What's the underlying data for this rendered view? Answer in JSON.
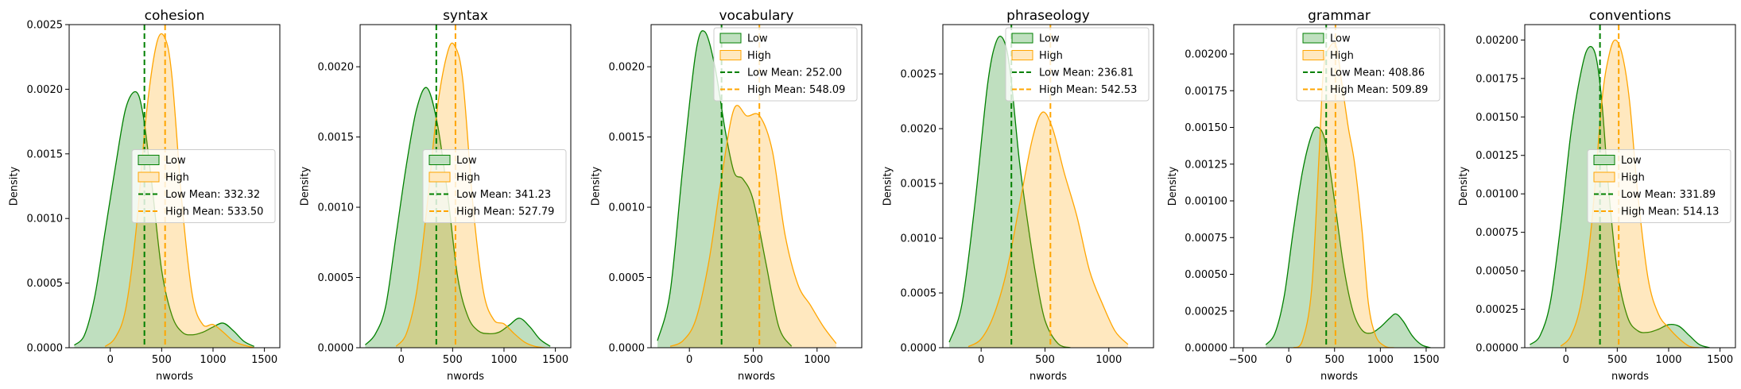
{
  "chart_data": [
    {
      "type": "area",
      "title": "cohesion",
      "xlabel": "nwords",
      "ylabel": "Density",
      "xlim": [
        -400,
        1650
      ],
      "ylim": [
        0,
        0.0025
      ],
      "xticks": [
        0,
        500,
        1000,
        1500
      ],
      "xticklabels": [
        "0",
        "500",
        "1000",
        "1500"
      ],
      "yticks": [
        0,
        0.0005,
        0.001,
        0.0015,
        0.002,
        0.0025
      ],
      "yticklabels": [
        "0.0000",
        "0.0005",
        "0.0010",
        "0.0015",
        "0.0020",
        "0.0025"
      ],
      "legend_placement": "center-right",
      "series": [
        {
          "name": "Low",
          "color": "#008000",
          "x": [
            -350,
            -250,
            -150,
            -50,
            50,
            150,
            250,
            320,
            400,
            500,
            600,
            700,
            800,
            900,
            1000,
            1100,
            1200,
            1300,
            1400
          ],
          "values": [
            2e-05,
            0.0001,
            0.0004,
            0.0009,
            0.0014,
            0.00185,
            0.00198,
            0.0018,
            0.0013,
            0.0006,
            0.00025,
            0.00012,
            0.0001,
            0.00012,
            0.00016,
            0.00019,
            0.00013,
            5e-05,
            1e-05
          ]
        },
        {
          "name": "High",
          "color": "#ffa500",
          "x": [
            -50,
            50,
            150,
            250,
            350,
            450,
            530,
            600,
            700,
            800,
            900,
            1000,
            1100,
            1200,
            1300,
            1400
          ],
          "values": [
            1e-05,
            8e-05,
            0.0003,
            0.0009,
            0.0018,
            0.00235,
            0.0024,
            0.0021,
            0.0011,
            0.0004,
            0.00018,
            0.00018,
            0.00012,
            5e-05,
            2e-05,
            0.0
          ]
        }
      ],
      "means": [
        {
          "name": "Low Mean: 332.32",
          "value": 332.32,
          "color": "#008000"
        },
        {
          "name": "High Mean: 533.50",
          "value": 533.5,
          "color": "#ffa500"
        }
      ]
    },
    {
      "type": "area",
      "title": "syntax",
      "xlabel": "nwords",
      "ylabel": "Density",
      "xlim": [
        -400,
        1650
      ],
      "ylim": [
        0,
        0.0023
      ],
      "xticks": [
        0,
        500,
        1000,
        1500
      ],
      "xticklabels": [
        "0",
        "500",
        "1000",
        "1500"
      ],
      "yticks": [
        0,
        0.0005,
        0.001,
        0.0015,
        0.002
      ],
      "yticklabels": [
        "0.0000",
        "0.0005",
        "0.0010",
        "0.0015",
        "0.0020"
      ],
      "legend_placement": "center-right",
      "series": [
        {
          "name": "Low",
          "color": "#008000",
          "x": [
            -350,
            -250,
            -150,
            -50,
            50,
            150,
            250,
            350,
            450,
            550,
            650,
            750,
            850,
            950,
            1050,
            1150,
            1250,
            1350,
            1450
          ],
          "values": [
            2e-05,
            0.0001,
            0.0003,
            0.0008,
            0.0013,
            0.0017,
            0.00185,
            0.0016,
            0.0011,
            0.0005,
            0.00022,
            0.00012,
            0.0001,
            0.00011,
            0.00016,
            0.00021,
            0.00015,
            6e-05,
            1e-05
          ]
        },
        {
          "name": "High",
          "color": "#ffa500",
          "x": [
            -50,
            50,
            150,
            250,
            350,
            450,
            520,
            600,
            700,
            800,
            900,
            1000,
            1100,
            1200,
            1300,
            1400
          ],
          "values": [
            1e-05,
            0.0001,
            0.0004,
            0.001,
            0.0017,
            0.0021,
            0.00215,
            0.0019,
            0.001,
            0.0004,
            0.0002,
            0.00017,
            0.0001,
            4e-05,
            1e-05,
            0.0
          ]
        }
      ],
      "means": [
        {
          "name": "Low Mean: 341.23",
          "value": 341.23,
          "color": "#008000"
        },
        {
          "name": "High Mean: 527.79",
          "value": 527.79,
          "color": "#ffa500"
        }
      ]
    },
    {
      "type": "area",
      "title": "vocabulary",
      "xlabel": "nwords",
      "ylabel": "Density",
      "xlim": [
        -300,
        1350
      ],
      "ylim": [
        0,
        0.0023
      ],
      "xticks": [
        0,
        500,
        1000
      ],
      "xticklabels": [
        "0",
        "500",
        "1000"
      ],
      "yticks": [
        0,
        0.0005,
        0.001,
        0.0015,
        0.002
      ],
      "yticklabels": [
        "0.0000",
        "0.0005",
        "0.0010",
        "0.0015",
        "0.0020"
      ],
      "legend_placement": "top-right",
      "series": [
        {
          "name": "Low",
          "color": "#008000",
          "x": [
            -250,
            -150,
            -50,
            50,
            120,
            200,
            280,
            350,
            420,
            500,
            600,
            700,
            800
          ],
          "values": [
            5e-05,
            0.0004,
            0.0013,
            0.0021,
            0.00225,
            0.002,
            0.00155,
            0.00125,
            0.0012,
            0.00105,
            0.0006,
            0.00015,
            1e-05
          ]
        },
        {
          "name": "High",
          "color": "#ffa500",
          "x": [
            -150,
            -50,
            50,
            150,
            250,
            350,
            450,
            550,
            650,
            750,
            850,
            950,
            1050,
            1150
          ],
          "values": [
            1e-05,
            5e-05,
            0.0002,
            0.0006,
            0.0012,
            0.0017,
            0.00165,
            0.00165,
            0.0014,
            0.0008,
            0.00045,
            0.0003,
            0.00015,
            3e-05
          ]
        }
      ],
      "means": [
        {
          "name": "Low Mean: 252.00",
          "value": 252.0,
          "color": "#008000"
        },
        {
          "name": "High Mean: 548.09",
          "value": 548.09,
          "color": "#ffa500"
        }
      ]
    },
    {
      "type": "area",
      "title": "phraseology",
      "xlabel": "nwords",
      "ylabel": "Density",
      "xlim": [
        -300,
        1350
      ],
      "ylim": [
        0,
        0.00295
      ],
      "xticks": [
        0,
        500,
        1000
      ],
      "xticklabels": [
        "0",
        "500",
        "1000"
      ],
      "yticks": [
        0,
        0.0005,
        0.001,
        0.0015,
        0.002,
        0.0025
      ],
      "yticklabels": [
        "0.0000",
        "0.0005",
        "0.0010",
        "0.0015",
        "0.0020",
        "0.0025"
      ],
      "legend_placement": "top-right",
      "series": [
        {
          "name": "Low",
          "color": "#008000",
          "x": [
            -250,
            -150,
            -50,
            50,
            120,
            180,
            230,
            300,
            370,
            430,
            500,
            600,
            700
          ],
          "values": [
            5e-05,
            0.0004,
            0.0013,
            0.0024,
            0.0028,
            0.0028,
            0.0025,
            0.0017,
            0.0011,
            0.00065,
            0.00025,
            4e-05,
            0.0
          ]
        },
        {
          "name": "High",
          "color": "#ffa500",
          "x": [
            -100,
            0,
            100,
            200,
            300,
            400,
            480,
            560,
            650,
            750,
            850,
            950,
            1050,
            1150
          ],
          "values": [
            1e-05,
            8e-05,
            0.0003,
            0.0007,
            0.0013,
            0.0019,
            0.00215,
            0.002,
            0.0016,
            0.0012,
            0.0007,
            0.0004,
            0.00015,
            3e-05
          ]
        }
      ],
      "means": [
        {
          "name": "Low Mean: 236.81",
          "value": 236.81,
          "color": "#008000"
        },
        {
          "name": "High Mean: 542.53",
          "value": 542.53,
          "color": "#ffa500"
        }
      ]
    },
    {
      "type": "area",
      "title": "grammar",
      "xlabel": "nwords",
      "ylabel": "Density",
      "xlim": [
        -600,
        1700
      ],
      "ylim": [
        0,
        0.0022
      ],
      "xticks": [
        -500,
        0,
        500,
        1000,
        1500
      ],
      "xticklabels": [
        "−500",
        "0",
        "500",
        "1000",
        "1500"
      ],
      "yticks": [
        0,
        0.00025,
        0.0005,
        0.00075,
        0.001,
        0.00125,
        0.0015,
        0.00175,
        0.002
      ],
      "yticklabels": [
        "0.00000",
        "0.00025",
        "0.00050",
        "0.00075",
        "0.00100",
        "0.00125",
        "0.00150",
        "0.00175",
        "0.00200"
      ],
      "legend_placement": "top-right",
      "series": [
        {
          "name": "Low",
          "color": "#008000",
          "x": [
            -250,
            -150,
            -50,
            50,
            150,
            250,
            320,
            400,
            500,
            600,
            700,
            800,
            900,
            1000,
            1100,
            1170,
            1250,
            1350,
            1450,
            1550
          ],
          "values": [
            2e-05,
            0.0001,
            0.00035,
            0.0008,
            0.0012,
            0.00145,
            0.0015,
            0.0014,
            0.001,
            0.00055,
            0.00025,
            0.00012,
            0.0001,
            0.00014,
            0.0002,
            0.00023,
            0.00018,
            8e-05,
            2e-05,
            0.0
          ]
        },
        {
          "name": "High",
          "color": "#ffa500",
          "x": [
            50,
            150,
            250,
            330,
            380,
            450,
            520,
            580,
            650,
            720,
            800,
            870,
            950,
            1050,
            1150
          ],
          "values": [
            0.0,
            5e-05,
            0.0004,
            0.0013,
            0.0019,
            0.00205,
            0.00205,
            0.0018,
            0.0015,
            0.00125,
            0.0008,
            0.0003,
            8e-05,
            1e-05,
            0.0
          ]
        }
      ],
      "means": [
        {
          "name": "Low Mean: 408.86",
          "value": 408.86,
          "color": "#008000"
        },
        {
          "name": "High Mean: 509.89",
          "value": 509.89,
          "color": "#ffa500"
        }
      ]
    },
    {
      "type": "area",
      "title": "conventions",
      "xlabel": "nwords",
      "ylabel": "Density",
      "xlim": [
        -400,
        1650
      ],
      "ylim": [
        0,
        0.0021
      ],
      "xticks": [
        0,
        500,
        1000,
        1500
      ],
      "xticklabels": [
        "0",
        "500",
        "1000",
        "1500"
      ],
      "yticks": [
        0,
        0.00025,
        0.0005,
        0.00075,
        0.001,
        0.00125,
        0.0015,
        0.00175,
        0.002
      ],
      "yticklabels": [
        "0.00000",
        "0.00025",
        "0.00050",
        "0.00075",
        "0.00100",
        "0.00125",
        "0.00150",
        "0.00175",
        "0.00200"
      ],
      "legend_placement": "center-right",
      "series": [
        {
          "name": "Low",
          "color": "#008000",
          "x": [
            -350,
            -250,
            -150,
            -50,
            50,
            150,
            220,
            290,
            350,
            420,
            500,
            600,
            700,
            800,
            900,
            1000,
            1100,
            1200,
            1300,
            1400
          ],
          "values": [
            2e-05,
            8e-05,
            0.0003,
            0.0008,
            0.0014,
            0.0018,
            0.00195,
            0.0019,
            0.0016,
            0.001,
            0.0005,
            0.0002,
            0.00011,
            0.0001,
            0.00012,
            0.00015,
            0.00014,
            8e-05,
            2e-05,
            0.0
          ]
        },
        {
          "name": "High",
          "color": "#ffa500",
          "x": [
            -50,
            50,
            150,
            250,
            350,
            420,
            480,
            550,
            620,
            700,
            800,
            900,
            1000,
            1100,
            1200,
            1300
          ],
          "values": [
            1e-05,
            8e-05,
            0.0003,
            0.0008,
            0.0016,
            0.0019,
            0.002,
            0.0019,
            0.0016,
            0.001,
            0.00045,
            0.00022,
            0.00013,
            6e-05,
            1e-05,
            0.0
          ]
        }
      ],
      "means": [
        {
          "name": "Low Mean: 331.89",
          "value": 331.89,
          "color": "#008000"
        },
        {
          "name": "High Mean: 514.13",
          "value": 514.13,
          "color": "#ffa500"
        }
      ]
    }
  ]
}
